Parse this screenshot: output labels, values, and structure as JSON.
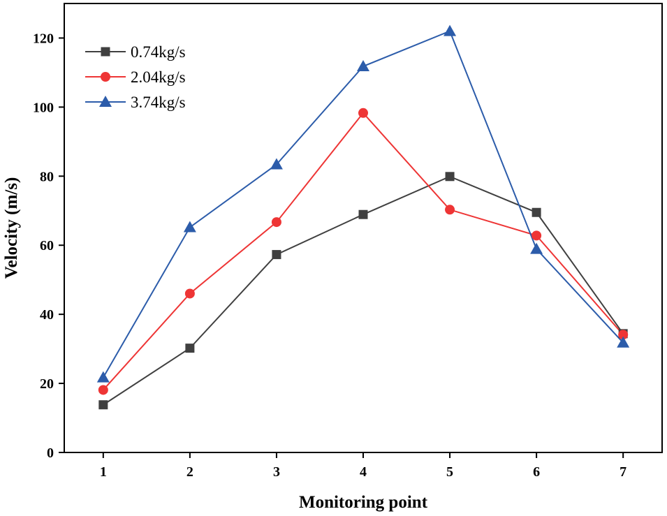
{
  "chart_data": {
    "type": "line",
    "title": "",
    "xlabel": "Monitoring point",
    "ylabel": "Velocity (m/s)",
    "x": [
      1,
      2,
      3,
      4,
      5,
      6,
      7
    ],
    "xticks": [
      "1",
      "2",
      "3",
      "4",
      "5",
      "6",
      "7"
    ],
    "yticks": [
      "0",
      "20",
      "40",
      "60",
      "80",
      "100",
      "120"
    ],
    "xlim": [
      0.55,
      7.45
    ],
    "ylim": [
      0,
      130
    ],
    "grid": false,
    "legend_position": "top-left",
    "series": [
      {
        "name": "0.74kg/s",
        "marker": "square",
        "color": "#404040",
        "values": [
          13.8,
          30.2,
          57.3,
          68.9,
          79.9,
          69.5,
          34.4
        ]
      },
      {
        "name": "2.04kg/s",
        "marker": "circle",
        "color": "#ee3535",
        "values": [
          18.1,
          46.0,
          66.7,
          98.3,
          70.3,
          62.8,
          34.1
        ]
      },
      {
        "name": "3.74kg/s",
        "marker": "triangle",
        "color": "#2c5caa",
        "values": [
          21.7,
          65.2,
          83.4,
          111.8,
          122.0,
          58.9,
          31.8
        ]
      }
    ]
  }
}
